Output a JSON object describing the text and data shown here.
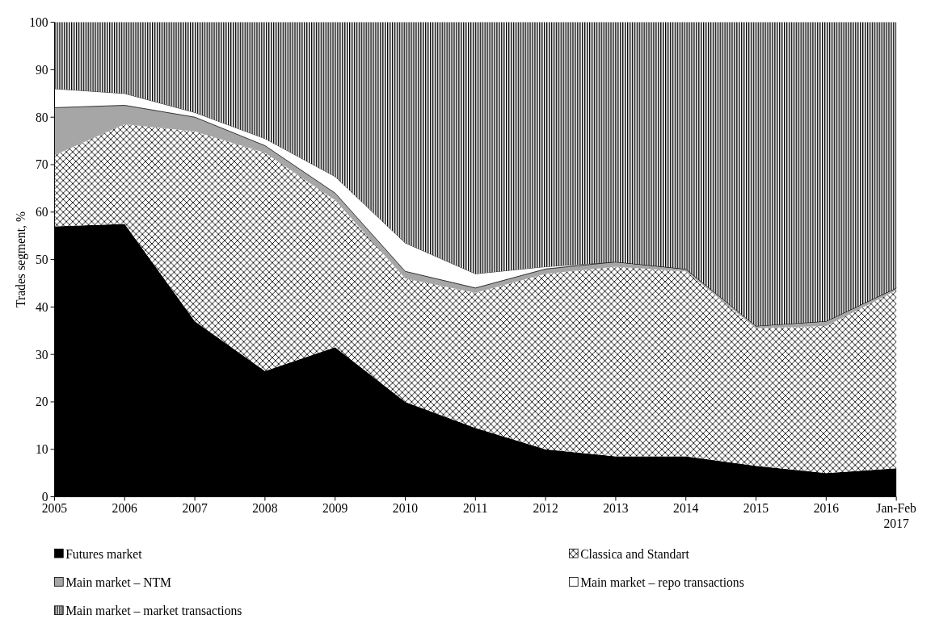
{
  "chart_data": {
    "type": "area",
    "stacked": true,
    "ylabel": "Trades segment, %",
    "ylim": [
      0,
      100
    ],
    "yticks": [
      0,
      10,
      20,
      30,
      40,
      50,
      60,
      70,
      80,
      90,
      100
    ],
    "legend": "bottom",
    "grid": false,
    "categories": [
      "2005",
      "2006",
      "2007",
      "2008",
      "2009",
      "2010",
      "2011",
      "2012",
      "2013",
      "2014",
      "2015",
      "2016",
      "Jan-Feb 2017"
    ],
    "series": [
      {
        "name": "Futures market",
        "color": "#000000",
        "values": [
          57,
          57.5,
          37,
          26.5,
          31.5,
          20,
          14.5,
          10,
          8.5,
          8.5,
          6.5,
          5,
          6
        ]
      },
      {
        "name": "Classica and Standart",
        "color": "#000000",
        "values": [
          15,
          21,
          40,
          46,
          31,
          26,
          28.5,
          37,
          40,
          39,
          29,
          31,
          37.5
        ]
      },
      {
        "name": "Main market – NTM",
        "color": "#a6a6a6",
        "values": [
          10,
          4,
          3,
          1.5,
          1.5,
          1.5,
          1,
          1,
          1,
          0.5,
          0.5,
          1,
          0.5
        ]
      },
      {
        "name": "Main market – repo transactions",
        "color": "#ffffff",
        "values": [
          4,
          2.5,
          1,
          1.5,
          3.5,
          6,
          3,
          0.5,
          0,
          0,
          0,
          0,
          0
        ]
      },
      {
        "name": "Main market – market transactions",
        "color": "#000000",
        "values": [
          14,
          15,
          19,
          24.5,
          32.5,
          46.5,
          53,
          51.5,
          50.5,
          52,
          64,
          63,
          56
        ]
      }
    ]
  }
}
